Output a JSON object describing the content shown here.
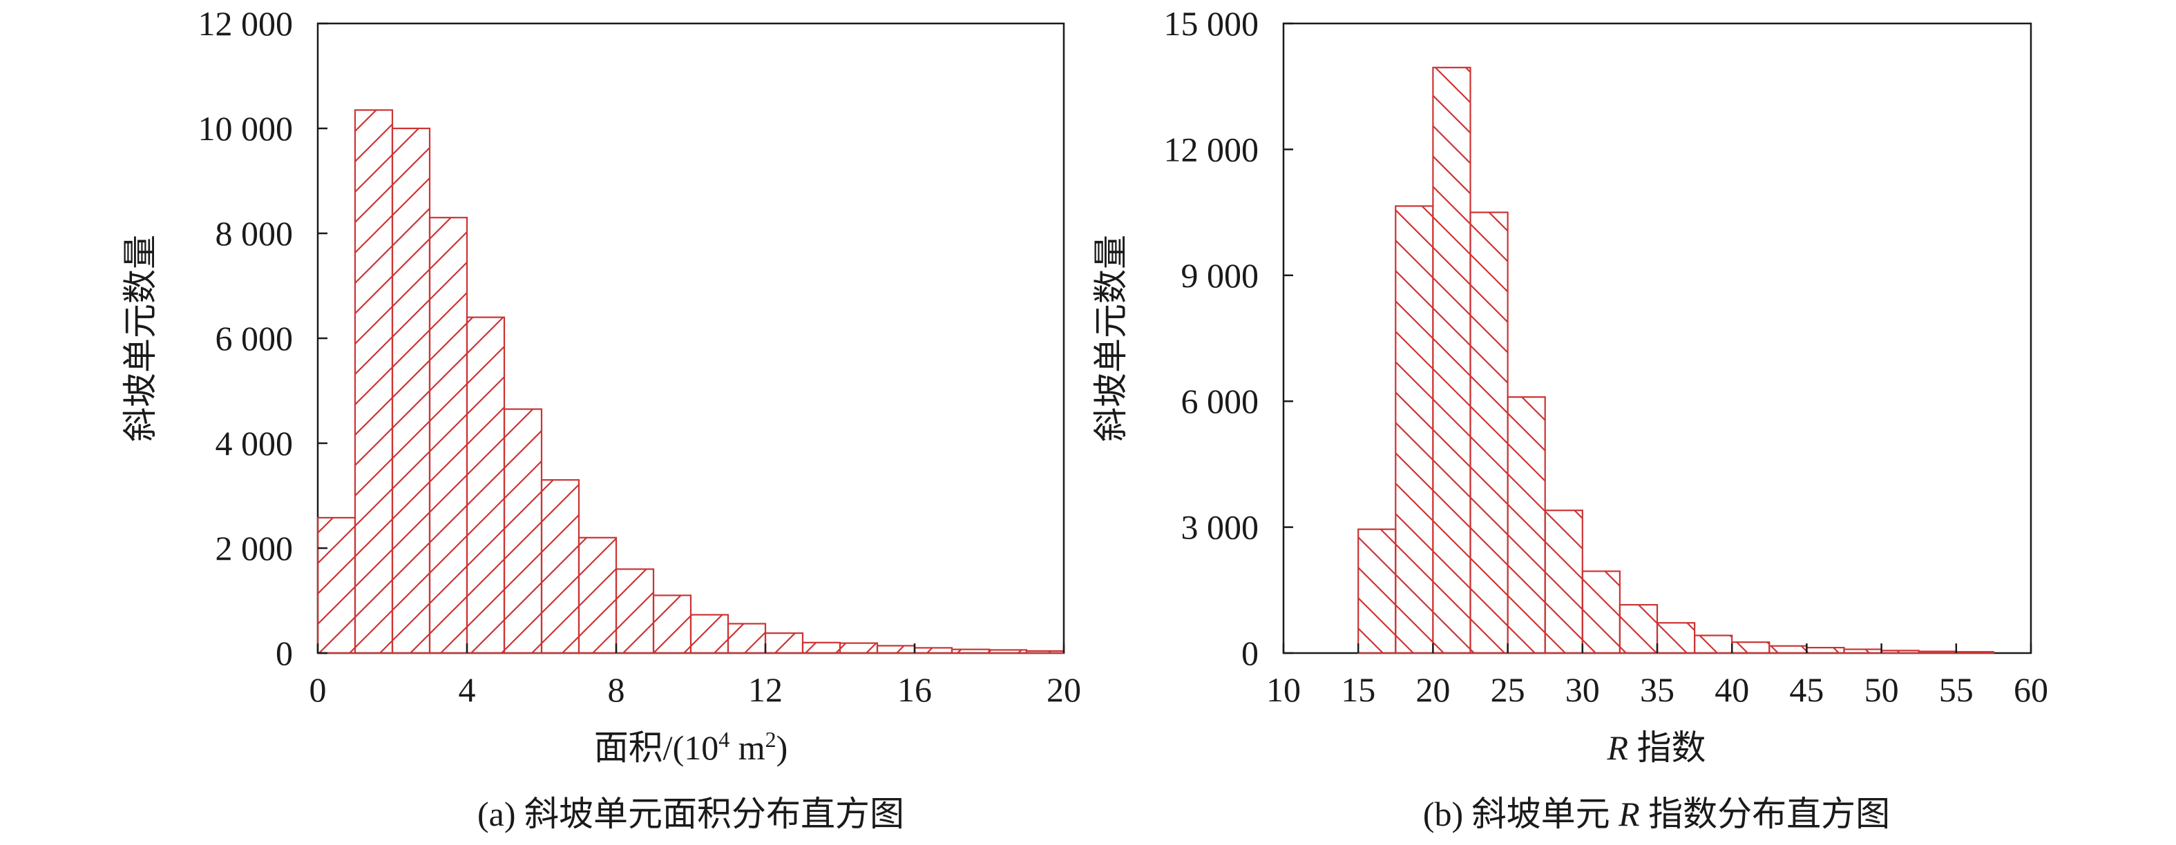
{
  "colors": {
    "bar_stroke": "#cc3333",
    "hatch": "#cc3333",
    "axis": "#1a1a1a",
    "background": "#ffffff"
  },
  "chart_data": [
    {
      "type": "bar",
      "panel": "a",
      "caption": "(a) 斜坡单元面积分布直方图",
      "xlabel_prefix": "面积/(10",
      "xlabel_sup1": "4",
      "xlabel_mid": " m",
      "xlabel_sup2": "2",
      "xlabel_suffix": ")",
      "ylabel": "斜坡单元数量",
      "xlim": [
        0,
        20
      ],
      "ylim": [
        0,
        12000
      ],
      "xticks": [
        0,
        4,
        8,
        12,
        16,
        20
      ],
      "xtick_labels": [
        "0",
        "4",
        "8",
        "12",
        "16",
        "20"
      ],
      "yticks": [
        0,
        2000,
        4000,
        6000,
        8000,
        10000,
        12000
      ],
      "ytick_labels": [
        "0",
        "2 000",
        "4 000",
        "6 000",
        "8 000",
        "10 000",
        "12 000"
      ],
      "hatch_direction": "forward",
      "bin_width": 1,
      "bins_start": [
        0,
        1,
        2,
        3,
        4,
        5,
        6,
        7,
        8,
        9,
        10,
        11,
        12,
        13,
        14,
        15,
        16,
        17,
        18,
        19
      ],
      "values": [
        2580,
        10350,
        10000,
        8300,
        6400,
        4650,
        3300,
        2200,
        1600,
        1100,
        730,
        560,
        380,
        200,
        190,
        140,
        100,
        70,
        60,
        40
      ]
    },
    {
      "type": "bar",
      "panel": "b",
      "caption_prefix": "(b) 斜坡单元 ",
      "caption_italic": "R",
      "caption_suffix": " 指数分布直方图",
      "xlabel_italic": "R",
      "xlabel_suffix": " 指数",
      "ylabel": "斜坡单元数量",
      "xlim": [
        10,
        60
      ],
      "ylim": [
        0,
        15000
      ],
      "xticks": [
        10,
        15,
        20,
        25,
        30,
        35,
        40,
        45,
        50,
        55,
        60
      ],
      "xtick_labels": [
        "10",
        "15",
        "20",
        "25",
        "30",
        "35",
        "40",
        "45",
        "50",
        "55",
        "60"
      ],
      "yticks": [
        0,
        3000,
        6000,
        9000,
        12000,
        15000
      ],
      "ytick_labels": [
        "0",
        "3 000",
        "6 000",
        "9 000",
        "12 000",
        "15 000"
      ],
      "hatch_direction": "backward",
      "bin_width": 2.5,
      "bins_start": [
        15,
        17.5,
        20,
        22.5,
        25,
        27.5,
        30,
        32.5,
        35,
        37.5,
        40,
        42.5,
        45,
        47.5,
        50,
        52.5,
        55
      ],
      "values": [
        2950,
        10650,
        13950,
        10500,
        6100,
        3400,
        1950,
        1150,
        720,
        420,
        260,
        170,
        130,
        90,
        60,
        40,
        30
      ]
    }
  ]
}
